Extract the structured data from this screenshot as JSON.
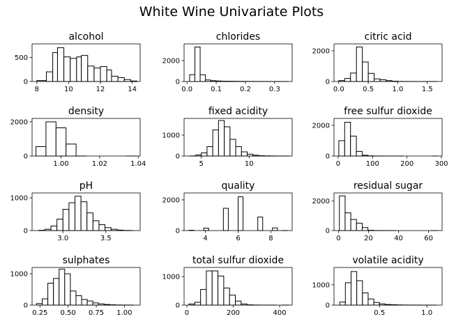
{
  "suptitle": "White Wine Univariate Plots",
  "chart_data": [
    {
      "type": "bar",
      "title": "alcohol",
      "xlim": [
        7.7,
        14.5
      ],
      "ylim": [
        0,
        780
      ],
      "bin_edges": [
        8.0,
        8.6,
        9.0,
        9.3,
        9.7,
        10.1,
        10.5,
        10.8,
        11.2,
        11.6,
        12.0,
        12.4,
        12.7,
        13.1,
        13.5,
        13.9,
        14.3
      ],
      "values": [
        20,
        200,
        600,
        700,
        510,
        480,
        510,
        540,
        320,
        280,
        310,
        240,
        110,
        80,
        40,
        10
      ],
      "xticks": [
        8,
        10,
        12,
        14
      ],
      "xticklabels": [
        "8",
        "10",
        "12",
        "14"
      ],
      "yticks": [
        0,
        500
      ],
      "yticklabels": [
        "0",
        "500"
      ]
    },
    {
      "type": "bar",
      "title": "chlorides",
      "xlim": [
        -0.01,
        0.36
      ],
      "ylim": [
        0,
        3600
      ],
      "bin_edges": [
        0.009,
        0.027,
        0.045,
        0.063,
        0.081,
        0.099,
        0.117,
        0.135,
        0.153,
        0.171,
        0.189,
        0.207,
        0.225,
        0.243,
        0.261,
        0.279,
        0.297,
        0.315,
        0.333,
        0.346
      ],
      "values": [
        650,
        3300,
        650,
        150,
        80,
        50,
        30,
        25,
        20,
        15,
        10,
        8,
        6,
        4,
        3,
        2,
        2,
        1,
        1
      ],
      "xticks": [
        0.0,
        0.1,
        0.2,
        0.3
      ],
      "xticklabels": [
        "0.0",
        "0.1",
        "0.2",
        "0.3"
      ],
      "yticks": [
        0,
        2000
      ],
      "yticklabels": [
        "0",
        "2000"
      ]
    },
    {
      "type": "bar",
      "title": "citric acid",
      "xlim": [
        -0.08,
        1.75
      ],
      "ylim": [
        0,
        2450
      ],
      "bin_edges": [
        0,
        0.1,
        0.2,
        0.3,
        0.4,
        0.5,
        0.6,
        0.7,
        0.8,
        0.9,
        1.0,
        1.1,
        1.2,
        1.3,
        1.4,
        1.5,
        1.6,
        1.66
      ],
      "values": [
        60,
        200,
        550,
        2250,
        1270,
        530,
        170,
        120,
        60,
        20,
        5,
        3,
        2,
        1,
        1,
        1,
        1
      ],
      "xticks": [
        0.0,
        0.5,
        1.0,
        1.5
      ],
      "xticklabels": [
        "0.0",
        "0.5",
        "1.0",
        "1.5"
      ],
      "yticks": [
        0,
        2000
      ],
      "yticklabels": [
        "0",
        "2000"
      ]
    },
    {
      "type": "bar",
      "title": "density",
      "xlim": [
        0.985,
        1.041
      ],
      "ylim": [
        0,
        2200
      ],
      "bin_edges": [
        0.987,
        0.9922,
        0.9974,
        1.0026,
        1.0078,
        1.013,
        1.0182,
        1.0234,
        1.0286,
        1.0338,
        1.039
      ],
      "values": [
        550,
        2000,
        1650,
        700,
        3,
        0,
        0,
        0,
        0,
        1
      ],
      "xticks": [
        1.0,
        1.02,
        1.04
      ],
      "xticklabels": [
        "1.00",
        "1.02",
        "1.04"
      ],
      "yticks": [
        0,
        2000
      ],
      "yticklabels": [
        "0",
        "2000"
      ]
    },
    {
      "type": "bar",
      "title": "fixed acidity",
      "xlim": [
        3.2,
        14.5
      ],
      "ylim": [
        0,
        1800
      ],
      "bin_edges": [
        3.8,
        4.4,
        5.0,
        5.6,
        6.2,
        6.8,
        7.4,
        8.0,
        8.6,
        9.2,
        9.8,
        10.4,
        11.0,
        11.6,
        12.2,
        12.8,
        13.4,
        14.2
      ],
      "values": [
        5,
        50,
        150,
        450,
        1250,
        1700,
        1400,
        800,
        450,
        200,
        90,
        40,
        15,
        8,
        4,
        2,
        1
      ],
      "xticks": [
        5,
        10
      ],
      "xticklabels": [
        "5",
        "10"
      ],
      "yticks": [
        0,
        1000
      ],
      "yticklabels": [
        "0",
        "1000"
      ]
    },
    {
      "type": "bar",
      "title": "free sulfur dioxide",
      "xlim": [
        -12,
        302
      ],
      "ylim": [
        0,
        2450
      ],
      "bin_edges": [
        2,
        19,
        36,
        53,
        70,
        87,
        104,
        121,
        138,
        155,
        172,
        189,
        206,
        223,
        240,
        257,
        274,
        289
      ],
      "values": [
        1000,
        2200,
        1300,
        300,
        50,
        10,
        3,
        2,
        1,
        1,
        1,
        0,
        0,
        0,
        0,
        0,
        1
      ],
      "xticks": [
        0,
        100,
        200,
        300
      ],
      "xticklabels": [
        "0",
        "100",
        "200",
        "300"
      ],
      "yticks": [
        0,
        2000
      ],
      "yticklabels": [
        "0",
        "2000"
      ]
    },
    {
      "type": "bar",
      "title": "pH",
      "xlim": [
        2.64,
        3.9
      ],
      "ylim": [
        0,
        1150
      ],
      "bin_edges": [
        2.72,
        2.79,
        2.86,
        2.93,
        3.0,
        3.07,
        3.14,
        3.21,
        3.28,
        3.35,
        3.42,
        3.49,
        3.56,
        3.63,
        3.7,
        3.77,
        3.82
      ],
      "values": [
        10,
        40,
        140,
        350,
        650,
        850,
        1050,
        880,
        540,
        300,
        180,
        90,
        40,
        15,
        5,
        2
      ],
      "xticks": [
        3.0,
        3.5
      ],
      "xticklabels": [
        "3.0",
        "3.5"
      ],
      "yticks": [
        0,
        1000
      ],
      "yticklabels": [
        "0",
        "1000"
      ]
    },
    {
      "type": "bar",
      "title": "quality",
      "xlim": [
        2.7,
        9.3
      ],
      "ylim": [
        0,
        2450
      ],
      "bin_edges": [
        3,
        3.3,
        3.6,
        3.9,
        4.2,
        4.5,
        4.8,
        5.1,
        5.4,
        5.7,
        6.0,
        6.3,
        6.6,
        6.9,
        7.2,
        7.5,
        7.8,
        8.1,
        8.4,
        8.7,
        9.0
      ],
      "values": [
        20,
        0,
        0,
        160,
        0,
        0,
        0,
        1450,
        0,
        0,
        2200,
        0,
        0,
        0,
        880,
        0,
        0,
        175,
        0,
        5
      ],
      "xticks": [
        4,
        6,
        8
      ],
      "xticklabels": [
        "4",
        "6",
        "8"
      ],
      "yticks": [
        0,
        2000
      ],
      "yticklabels": [
        "0",
        "2000"
      ]
    },
    {
      "type": "bar",
      "title": "residual sugar",
      "xlim": [
        -3,
        69
      ],
      "ylim": [
        0,
        2550
      ],
      "bin_edges": [
        0.6,
        4.4,
        8.2,
        12.0,
        15.8,
        19.6,
        23.4,
        27.2,
        31.0,
        34.8,
        38.6,
        42.4,
        46.2,
        50.0,
        53.8,
        57.6,
        61.4,
        65.8
      ],
      "values": [
        2350,
        1200,
        750,
        500,
        200,
        20,
        5,
        3,
        2,
        1,
        0,
        0,
        0,
        0,
        0,
        0,
        1
      ],
      "xticks": [
        0,
        20,
        40,
        60
      ],
      "xticklabels": [
        "0",
        "20",
        "40",
        "60"
      ],
      "yticks": [
        0,
        2000
      ],
      "yticklabels": [
        "0",
        "2000"
      ]
    },
    {
      "type": "bar",
      "title": "sulphates",
      "xlim": [
        0.18,
        1.14
      ],
      "ylim": [
        0,
        1200
      ],
      "bin_edges": [
        0.22,
        0.27,
        0.32,
        0.37,
        0.42,
        0.47,
        0.52,
        0.57,
        0.62,
        0.67,
        0.72,
        0.77,
        0.82,
        0.87,
        0.92,
        0.97,
        1.02,
        1.08
      ],
      "values": [
        50,
        200,
        700,
        850,
        1150,
        1000,
        450,
        300,
        180,
        130,
        70,
        40,
        20,
        10,
        5,
        3,
        2
      ],
      "xticks": [
        0.25,
        0.5,
        0.75,
        1.0
      ],
      "xticklabels": [
        "0.25",
        "0.50",
        "0.75",
        "1.00"
      ],
      "yticks": [
        0,
        1000
      ],
      "yticklabels": [
        "0",
        "1000"
      ]
    },
    {
      "type": "bar",
      "title": "total sulfur dioxide",
      "xlim": [
        -12,
        454
      ],
      "ylim": [
        0,
        1320
      ],
      "bin_edges": [
        9,
        34,
        59,
        84,
        109,
        134,
        159,
        184,
        209,
        234,
        259,
        284,
        309,
        334,
        359,
        384,
        409,
        440
      ],
      "values": [
        40,
        100,
        550,
        1200,
        1200,
        1020,
        600,
        350,
        140,
        40,
        10,
        4,
        2,
        1,
        1,
        0,
        1
      ],
      "xticks": [
        0,
        200,
        400
      ],
      "xticklabels": [
        "0",
        "200",
        "400"
      ],
      "yticks": [
        0,
        1000
      ],
      "yticklabels": [
        "0",
        "1000"
      ]
    },
    {
      "type": "bar",
      "title": "volatile acidity",
      "xlim": [
        0.02,
        1.16
      ],
      "ylim": [
        0,
        1850
      ],
      "bin_edges": [
        0.08,
        0.14,
        0.2,
        0.26,
        0.32,
        0.38,
        0.44,
        0.5,
        0.56,
        0.62,
        0.68,
        0.74,
        0.8,
        0.86,
        0.92,
        0.98,
        1.04,
        1.1
      ],
      "values": [
        150,
        1100,
        1650,
        1200,
        600,
        300,
        130,
        60,
        30,
        20,
        10,
        5,
        3,
        2,
        1,
        1,
        1
      ],
      "xticks": [
        0.5,
        1.0
      ],
      "xticklabels": [
        "0.5",
        "1.0"
      ],
      "yticks": [
        0,
        1000
      ],
      "yticklabels": [
        "0",
        "1000"
      ]
    }
  ]
}
